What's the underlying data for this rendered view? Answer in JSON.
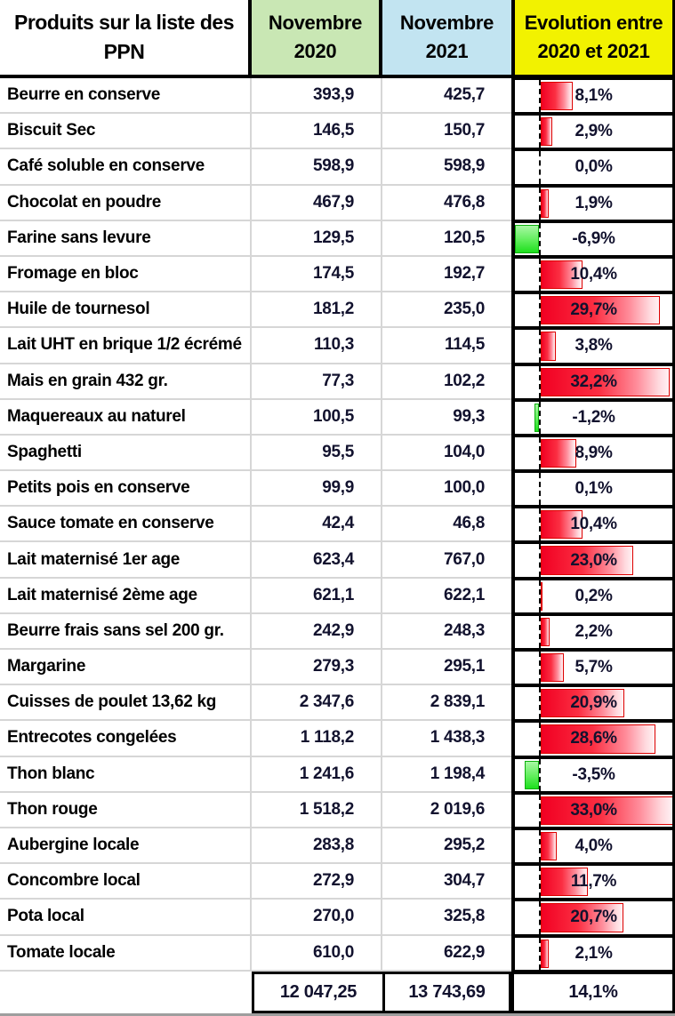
{
  "table": {
    "header": {
      "product": "Produits sur la liste des PPN",
      "col2020": "Novembre 2020",
      "col2021": "Novembre 2021",
      "evolution": "Evolution entre 2020 et 2021"
    },
    "rows": [
      {
        "name": "Beurre en conserve",
        "v2020": "393,9",
        "v2021": "425,7",
        "evolution_label": "8,1%",
        "evolution_pct": 8.1
      },
      {
        "name": "Biscuit Sec",
        "v2020": "146,5",
        "v2021": "150,7",
        "evolution_label": "2,9%",
        "evolution_pct": 2.9
      },
      {
        "name": "Café soluble en conserve",
        "v2020": "598,9",
        "v2021": "598,9",
        "evolution_label": "0,0%",
        "evolution_pct": 0.0
      },
      {
        "name": "Chocolat en poudre",
        "v2020": "467,9",
        "v2021": "476,8",
        "evolution_label": "1,9%",
        "evolution_pct": 1.9
      },
      {
        "name": "Farine sans levure",
        "v2020": "129,5",
        "v2021": "120,5",
        "evolution_label": "-6,9%",
        "evolution_pct": -6.9
      },
      {
        "name": "Fromage en bloc",
        "v2020": "174,5",
        "v2021": "192,7",
        "evolution_label": "10,4%",
        "evolution_pct": 10.4
      },
      {
        "name": "Huile de tournesol",
        "v2020": "181,2",
        "v2021": "235,0",
        "evolution_label": "29,7%",
        "evolution_pct": 29.7
      },
      {
        "name": "Lait UHT en brique 1/2 écrémé",
        "v2020": "110,3",
        "v2021": "114,5",
        "evolution_label": "3,8%",
        "evolution_pct": 3.8
      },
      {
        "name": "Mais en grain 432 gr.",
        "v2020": "77,3",
        "v2021": "102,2",
        "evolution_label": "32,2%",
        "evolution_pct": 32.2
      },
      {
        "name": "Maquereaux au naturel",
        "v2020": "100,5",
        "v2021": "99,3",
        "evolution_label": "-1,2%",
        "evolution_pct": -1.2
      },
      {
        "name": "Spaghetti",
        "v2020": "95,5",
        "v2021": "104,0",
        "evolution_label": "8,9%",
        "evolution_pct": 8.9
      },
      {
        "name": "Petits pois en conserve",
        "v2020": "99,9",
        "v2021": "100,0",
        "evolution_label": "0,1%",
        "evolution_pct": 0.1
      },
      {
        "name": "Sauce tomate en conserve",
        "v2020": "42,4",
        "v2021": "46,8",
        "evolution_label": "10,4%",
        "evolution_pct": 10.4
      },
      {
        "name": "Lait maternisé 1er age",
        "v2020": "623,4",
        "v2021": "767,0",
        "evolution_label": "23,0%",
        "evolution_pct": 23.0
      },
      {
        "name": "Lait maternisé 2ème age",
        "v2020": "621,1",
        "v2021": "622,1",
        "evolution_label": "0,2%",
        "evolution_pct": 0.2
      },
      {
        "name": "Beurre frais sans sel 200 gr.",
        "v2020": "242,9",
        "v2021": "248,3",
        "evolution_label": "2,2%",
        "evolution_pct": 2.2
      },
      {
        "name": "Margarine",
        "v2020": "279,3",
        "v2021": "295,1",
        "evolution_label": "5,7%",
        "evolution_pct": 5.7
      },
      {
        "name": "Cuisses de poulet 13,62 kg",
        "v2020": "2 347,6",
        "v2021": "2 839,1",
        "evolution_label": "20,9%",
        "evolution_pct": 20.9
      },
      {
        "name": "Entrecotes congelées",
        "v2020": "1 118,2",
        "v2021": "1 438,3",
        "evolution_label": "28,6%",
        "evolution_pct": 28.6
      },
      {
        "name": "Thon blanc",
        "v2020": "1 241,6",
        "v2021": "1 198,4",
        "evolution_label": "-3,5%",
        "evolution_pct": -3.5
      },
      {
        "name": "Thon rouge",
        "v2020": "1 518,2",
        "v2021": "2 019,6",
        "evolution_label": "33,0%",
        "evolution_pct": 33.0
      },
      {
        "name": "Aubergine locale",
        "v2020": "283,8",
        "v2021": "295,2",
        "evolution_label": "4,0%",
        "evolution_pct": 4.0
      },
      {
        "name": "Concombre local",
        "v2020": "272,9",
        "v2021": "304,7",
        "evolution_label": "11,7%",
        "evolution_pct": 11.7
      },
      {
        "name": "Pota local",
        "v2020": "270,0",
        "v2021": "325,8",
        "evolution_label": "20,7%",
        "evolution_pct": 20.7
      },
      {
        "name": "Tomate locale",
        "v2020": "610,0",
        "v2021": "622,9",
        "evolution_label": "2,1%",
        "evolution_pct": 2.1
      }
    ],
    "footer": {
      "total2020": "12 047,25",
      "total2021": "13 743,69",
      "evolution": "14,1%"
    }
  },
  "colors": {
    "header_2020_bg": "#c9e7b4",
    "header_2021_bg": "#c2e4f1",
    "header_evolution_bg": "#f2f200",
    "positive_bar": "#f10022",
    "negative_bar": "#2de02d",
    "value_text": "#12122e"
  },
  "chart_data": {
    "type": "table",
    "title": "Produits sur la liste des PPN",
    "columns": [
      "Produits sur la liste des PPN",
      "Novembre 2020",
      "Novembre 2021",
      "Evolution entre 2020 et 2021"
    ],
    "categories": [
      "Beurre en conserve",
      "Biscuit Sec",
      "Café soluble en conserve",
      "Chocolat en poudre",
      "Farine sans levure",
      "Fromage en bloc",
      "Huile de tournesol",
      "Lait UHT en brique 1/2 écrémé",
      "Mais en grain 432 gr.",
      "Maquereaux au naturel",
      "Spaghetti",
      "Petits pois en conserve",
      "Sauce tomate en conserve",
      "Lait maternisé 1er age",
      "Lait maternisé 2ème age",
      "Beurre frais sans sel 200 gr.",
      "Margarine",
      "Cuisses de poulet 13,62 kg",
      "Entrecotes congelées",
      "Thon blanc",
      "Thon rouge",
      "Aubergine locale",
      "Concombre local",
      "Pota local",
      "Tomate locale"
    ],
    "series": [
      {
        "name": "Novembre 2020",
        "values": [
          393.9,
          146.5,
          598.9,
          467.9,
          129.5,
          174.5,
          181.2,
          110.3,
          77.3,
          100.5,
          95.5,
          99.9,
          42.4,
          623.4,
          621.1,
          242.9,
          279.3,
          2347.6,
          1118.2,
          1241.6,
          1518.2,
          283.8,
          272.9,
          270.0,
          610.0
        ]
      },
      {
        "name": "Novembre 2021",
        "values": [
          425.7,
          150.7,
          598.9,
          476.8,
          120.5,
          192.7,
          235.0,
          114.5,
          102.2,
          99.3,
          104.0,
          100.0,
          46.8,
          767.0,
          622.1,
          248.3,
          295.1,
          2839.1,
          1438.3,
          1198.4,
          2019.6,
          295.2,
          304.7,
          325.8,
          622.9
        ]
      },
      {
        "name": "Evolution entre 2020 et 2021 (%)",
        "values": [
          8.1,
          2.9,
          0.0,
          1.9,
          -6.9,
          10.4,
          29.7,
          3.8,
          32.2,
          -1.2,
          8.9,
          0.1,
          10.4,
          23.0,
          0.2,
          2.2,
          5.7,
          20.9,
          28.6,
          -3.5,
          33.0,
          4.0,
          11.7,
          20.7,
          2.1
        ]
      }
    ],
    "totals": {
      "Novembre 2020": 12047.25,
      "Novembre 2021": 13743.69,
      "Evolution entre 2020 et 2021 (%)": 14.1
    },
    "bar_chart": {
      "type": "bar",
      "orientation": "horizontal",
      "axis_range_pct": [
        -7,
        33
      ],
      "positive_color": "red-gradient",
      "negative_color": "green-gradient",
      "zero_axis": "dashed"
    }
  }
}
